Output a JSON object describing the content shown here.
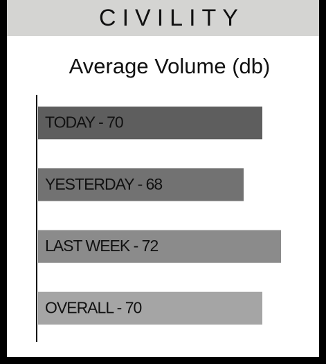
{
  "chart_data": {
    "type": "bar",
    "header": "CIVILITY",
    "title": "Average Volume (db)",
    "values": [
      70,
      68,
      72,
      70
    ],
    "value_labels": [
      "TODAY - 70",
      "YESTERDAY - 68",
      "LAST WEEK - 72",
      "OVERALL - 70"
    ],
    "colors": [
      "#5e5e5e",
      "#727272",
      "#8b8b8b",
      "#a5a5a5"
    ],
    "xlim": [
      46,
      76
    ],
    "orientation": "horizontal"
  }
}
